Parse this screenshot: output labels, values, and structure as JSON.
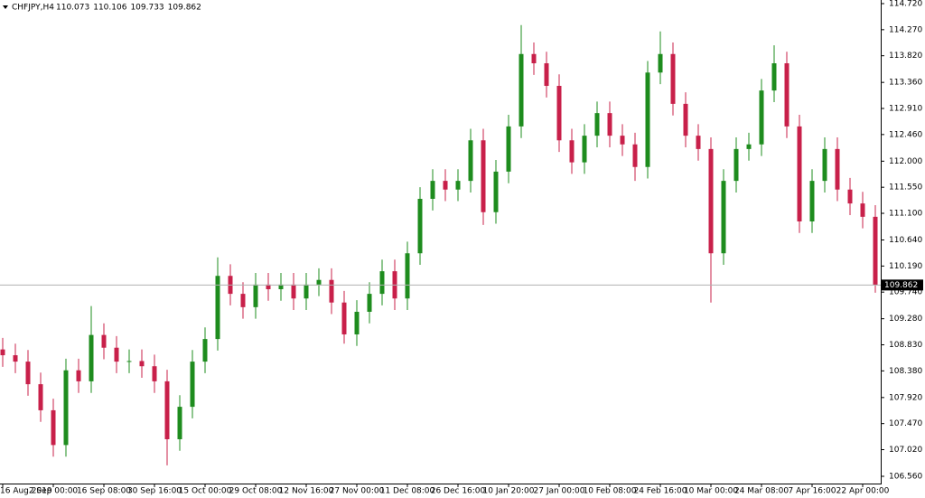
{
  "chart_data": {
    "type": "candlestick",
    "title": "CHFJPY,H4",
    "ohlc": [
      110.073,
      110.106,
      109.733,
      109.862
    ],
    "up_color": "#1e8c1e",
    "down_color": "#c8204a",
    "categories": [
      "16 Aug 2019",
      null,
      null,
      null,
      "2 Sep 00:00",
      null,
      null,
      null,
      "16 Sep 08:00",
      null,
      null,
      null,
      "30 Sep 16:00",
      null,
      null,
      null,
      "15 Oct 00:00",
      null,
      null,
      null,
      "29 Oct 08:00",
      null,
      null,
      null,
      "12 Nov 16:00",
      null,
      null,
      null,
      "27 Nov 00:00",
      null,
      null,
      null,
      "11 Dec 08:00",
      null,
      null,
      null,
      "26 Dec 16:00",
      null,
      null,
      null,
      "10 Jan 20:00",
      null,
      null,
      null,
      "27 Jan 00:00",
      null,
      null,
      null,
      "10 Feb 08:00",
      null,
      null,
      null,
      "24 Feb 16:00",
      null,
      null,
      null,
      "10 Mar 00:00",
      null,
      null,
      null,
      "24 Mar 08:00",
      null,
      null,
      null,
      "7 Apr 16:00",
      null,
      null,
      null,
      "22 Apr 00:00",
      null
    ],
    "open": [
      108.75,
      108.65,
      108.54,
      108.15,
      107.7,
      107.1,
      108.39,
      108.2,
      109.0,
      108.78,
      108.54,
      108.55,
      108.46,
      108.2,
      107.2,
      107.76,
      108.54,
      108.93,
      110.02,
      109.71,
      109.48,
      109.87,
      109.79,
      109.87,
      109.63,
      109.87,
      109.95,
      109.56,
      109.01,
      109.4,
      109.71,
      110.1,
      109.63,
      110.41,
      111.35,
      111.66,
      111.51,
      111.66,
      112.36,
      111.12,
      111.82,
      112.6,
      113.85,
      113.69,
      113.3,
      112.36,
      111.98,
      112.44,
      112.83,
      112.44,
      112.29,
      111.9,
      113.53,
      113.85,
      112.99,
      112.44,
      112.21,
      110.41,
      111.66,
      112.21,
      112.29,
      113.22,
      113.69,
      112.6,
      110.96,
      111.66,
      112.21,
      111.51,
      111.27,
      111.04
    ],
    "high": [
      108.95,
      108.85,
      108.74,
      108.35,
      107.9,
      108.59,
      108.59,
      109.5,
      109.2,
      108.98,
      108.75,
      108.75,
      108.66,
      108.4,
      107.96,
      108.74,
      109.13,
      110.34,
      110.22,
      109.91,
      110.07,
      110.07,
      110.07,
      110.07,
      110.07,
      110.15,
      110.15,
      109.76,
      109.6,
      109.91,
      110.3,
      110.3,
      110.61,
      111.55,
      111.86,
      111.86,
      111.86,
      112.56,
      112.56,
      112.02,
      112.8,
      114.35,
      114.05,
      113.89,
      113.5,
      112.56,
      112.64,
      113.03,
      113.03,
      112.64,
      112.49,
      113.73,
      114.24,
      114.05,
      113.19,
      112.64,
      112.41,
      111.86,
      112.41,
      112.49,
      113.42,
      114.0,
      113.89,
      112.8,
      111.86,
      112.41,
      112.41,
      111.71,
      111.47,
      111.24
    ],
    "low": [
      108.45,
      108.34,
      107.95,
      107.5,
      106.9,
      106.9,
      108.0,
      108.0,
      108.58,
      108.34,
      108.34,
      108.26,
      108.0,
      106.75,
      107.0,
      107.56,
      108.34,
      108.73,
      109.51,
      109.28,
      109.28,
      109.59,
      109.59,
      109.43,
      109.43,
      109.67,
      109.36,
      108.85,
      108.81,
      109.2,
      109.51,
      109.43,
      109.43,
      110.21,
      111.15,
      111.31,
      111.31,
      111.46,
      110.9,
      110.92,
      111.62,
      112.4,
      113.49,
      113.1,
      112.16,
      111.78,
      111.78,
      112.24,
      112.24,
      112.09,
      111.66,
      111.7,
      113.33,
      112.79,
      112.24,
      112.01,
      109.56,
      110.21,
      111.46,
      112.01,
      112.09,
      113.02,
      112.4,
      110.76,
      110.76,
      111.46,
      111.31,
      111.07,
      110.84,
      109.73
    ],
    "close": [
      108.65,
      108.54,
      108.15,
      107.7,
      107.1,
      108.39,
      108.2,
      109.0,
      108.78,
      108.54,
      108.55,
      108.46,
      108.2,
      107.2,
      107.76,
      108.54,
      108.93,
      110.02,
      109.71,
      109.48,
      109.87,
      109.79,
      109.87,
      109.63,
      109.87,
      109.95,
      109.56,
      109.01,
      109.4,
      109.71,
      110.1,
      109.63,
      110.41,
      111.35,
      111.66,
      111.51,
      111.66,
      112.36,
      111.12,
      111.82,
      112.6,
      113.85,
      113.69,
      113.3,
      112.36,
      111.98,
      112.44,
      112.83,
      112.44,
      112.29,
      111.9,
      113.53,
      113.85,
      112.99,
      112.44,
      112.21,
      110.41,
      111.66,
      112.21,
      112.29,
      113.22,
      113.69,
      112.6,
      110.96,
      111.66,
      112.21,
      111.51,
      111.27,
      111.04,
      109.86
    ],
    "ylim": [
      106.56,
      114.72
    ],
    "yticks": [
      {
        "value": 114.72,
        "label": "114.720"
      },
      {
        "value": 114.27,
        "label": "114.270"
      },
      {
        "value": 113.82,
        "label": "113.820"
      },
      {
        "value": 113.36,
        "label": "113.360"
      },
      {
        "value": 112.91,
        "label": "112.910"
      },
      {
        "value": 112.46,
        "label": "112.460"
      },
      {
        "value": 112.0,
        "label": "112.000"
      },
      {
        "value": 111.55,
        "label": "111.550"
      },
      {
        "value": 111.1,
        "label": "111.100"
      },
      {
        "value": 110.64,
        "label": "110.640"
      },
      {
        "value": 110.19,
        "label": "110.190"
      },
      {
        "value": 109.74,
        "label": "109.740"
      },
      {
        "value": 109.28,
        "label": "109.280"
      },
      {
        "value": 108.83,
        "label": "108.830"
      },
      {
        "value": 108.38,
        "label": "108.380"
      },
      {
        "value": 107.92,
        "label": "107.920"
      },
      {
        "value": 107.47,
        "label": "107.470"
      },
      {
        "value": 107.02,
        "label": "107.020"
      },
      {
        "value": 106.56,
        "label": "106.560"
      }
    ]
  }
}
